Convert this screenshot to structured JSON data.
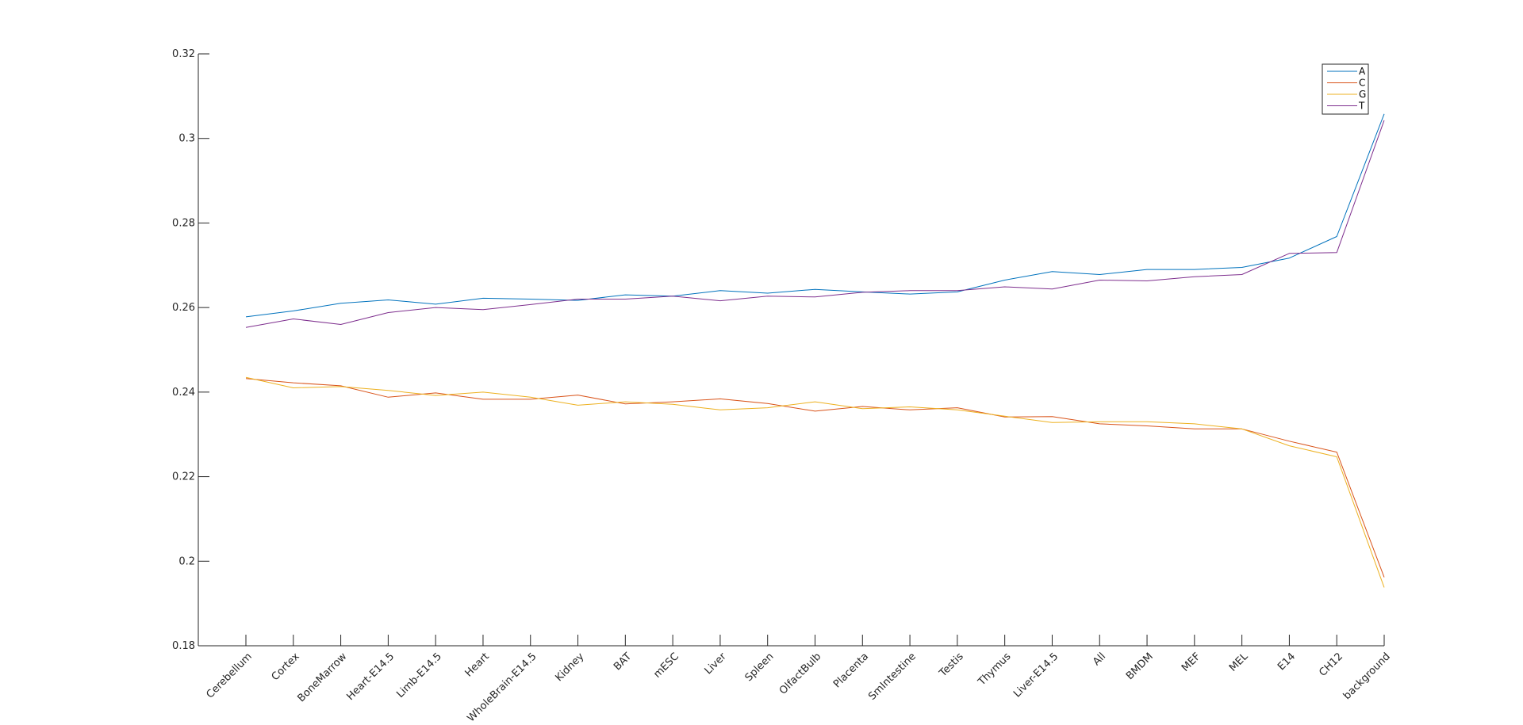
{
  "chart_data": {
    "type": "line",
    "title": "",
    "xlabel": "",
    "ylabel": "",
    "categories": [
      "Cerebellum",
      "Cortex",
      "BoneMarrow",
      "Heart-E14.5",
      "Limb-E14.5",
      "Heart",
      "WholeBrain-E14.5",
      "Kidney",
      "BAT",
      "mESC",
      "Liver",
      "Spleen",
      "OlfactBulb",
      "Placenta",
      "SmIntestine",
      "Testis",
      "Thymus",
      "Liver-E14.5",
      "All",
      "BMDM",
      "MEF",
      "MEL",
      "E14",
      "CH12",
      "background"
    ],
    "ylim": [
      0.18,
      0.32
    ],
    "yticks": [
      0.18,
      0.2,
      0.22,
      0.24,
      0.26,
      0.28,
      0.3,
      0.32
    ],
    "ytick_labels": [
      "0.18",
      "0.2",
      "0.22",
      "0.24",
      "0.26",
      "0.28",
      "0.3",
      "0.32"
    ],
    "grid": false,
    "legend_position": "top-right",
    "series": [
      {
        "name": "A",
        "color": "#0072BD",
        "values": [
          0.2578,
          0.2592,
          0.261,
          0.2618,
          0.2608,
          0.2622,
          0.262,
          0.2617,
          0.263,
          0.2627,
          0.264,
          0.2634,
          0.2643,
          0.2637,
          0.2632,
          0.2637,
          0.2665,
          0.2685,
          0.2678,
          0.269,
          0.269,
          0.2695,
          0.2717,
          0.2768,
          0.3058
        ]
      },
      {
        "name": "C",
        "color": "#D95319",
        "values": [
          0.2432,
          0.2422,
          0.2415,
          0.2388,
          0.2398,
          0.2383,
          0.2383,
          0.2393,
          0.2372,
          0.2377,
          0.2384,
          0.2373,
          0.2355,
          0.2366,
          0.2358,
          0.2363,
          0.2341,
          0.2342,
          0.2325,
          0.232,
          0.2313,
          0.2313,
          0.2284,
          0.2258,
          0.1962
        ]
      },
      {
        "name": "G",
        "color": "#EDB120",
        "values": [
          0.2435,
          0.241,
          0.2413,
          0.2404,
          0.2392,
          0.24,
          0.2388,
          0.2369,
          0.2377,
          0.2371,
          0.2358,
          0.2363,
          0.2377,
          0.2361,
          0.2365,
          0.2358,
          0.2343,
          0.2328,
          0.233,
          0.233,
          0.2325,
          0.2313,
          0.2273,
          0.2247,
          0.1938
        ]
      },
      {
        "name": "T",
        "color": "#7E2F8E",
        "values": [
          0.2553,
          0.2573,
          0.256,
          0.2588,
          0.26,
          0.2595,
          0.2607,
          0.262,
          0.262,
          0.2627,
          0.2616,
          0.2627,
          0.2625,
          0.2636,
          0.264,
          0.264,
          0.2649,
          0.2644,
          0.2665,
          0.2663,
          0.2673,
          0.2678,
          0.2728,
          0.273,
          0.3043
        ]
      }
    ]
  }
}
